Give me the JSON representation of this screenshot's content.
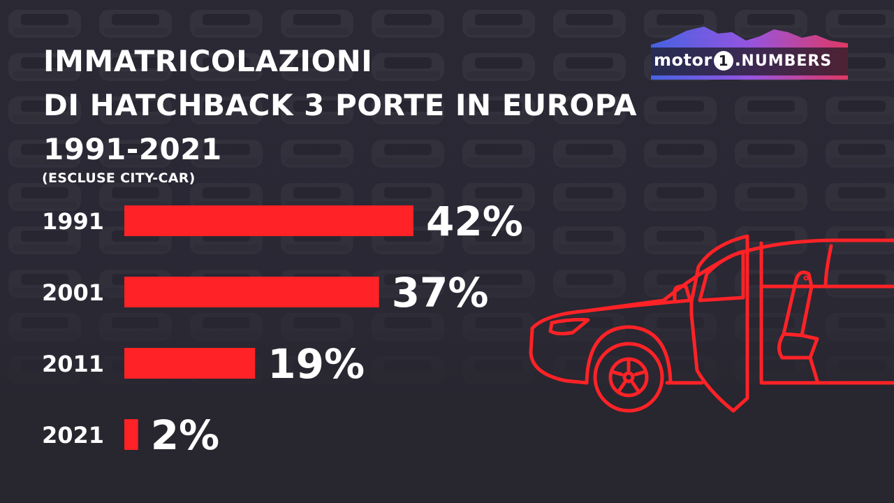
{
  "title_lines": [
    "IMMATRICOLAZIONI",
    "DI HATCHBACK 3 PORTE IN EUROPA",
    "1991-2021"
  ],
  "subtitle": "(ESCLUSE CITY-CAR)",
  "logo": {
    "word": "motor",
    "one": "1",
    "dot": ".",
    "numbers": "NUMBERS"
  },
  "colors": {
    "bar": "#ff2226",
    "background": "#2a2833",
    "text": "#ffffff",
    "car_outline": "#ff2226"
  },
  "icons": [
    "car-outline-icon"
  ],
  "chart_data": {
    "type": "bar",
    "orientation": "horizontal",
    "title": "IMMATRICOLAZIONI DI HATCHBACK 3 PORTE IN EUROPA 1991-2021",
    "subtitle": "(ESCLUSE CITY-CAR)",
    "categories": [
      "1991",
      "2001",
      "2011",
      "2021"
    ],
    "values": [
      42,
      37,
      19,
      2
    ],
    "value_labels": [
      "42%",
      "37%",
      "19%",
      "2%"
    ],
    "unit": "%",
    "xlim": [
      0,
      42
    ],
    "grid": false,
    "legend": "none"
  }
}
